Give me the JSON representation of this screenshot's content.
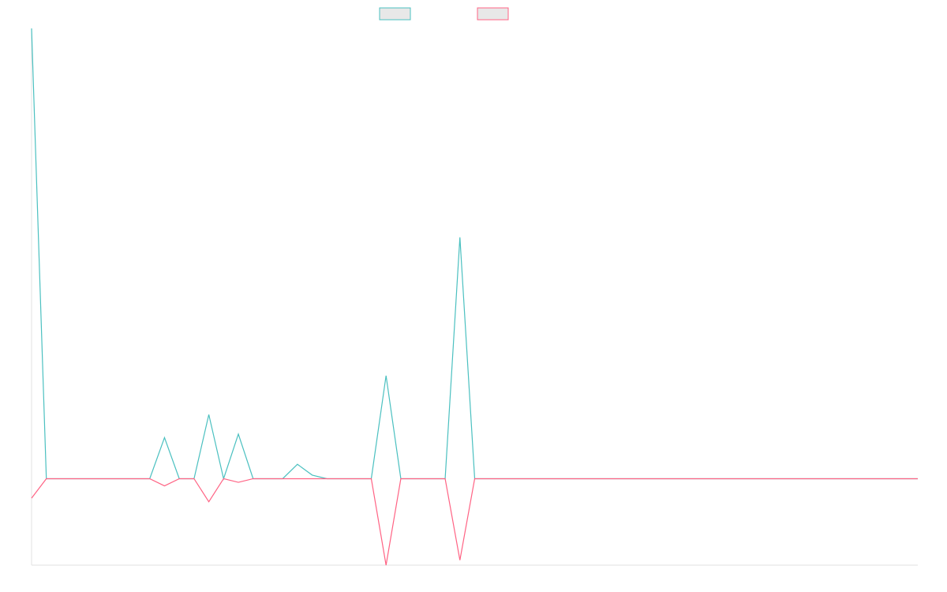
{
  "chart_data": {
    "type": "line",
    "title": "",
    "xlabel": "",
    "ylabel": "",
    "grid": false,
    "legend_position": "top-center",
    "x": [
      0,
      1,
      2,
      3,
      4,
      5,
      6,
      7,
      8,
      9,
      10,
      11,
      12,
      13,
      14,
      15,
      16,
      17,
      18,
      19,
      20,
      21,
      22,
      23,
      24,
      25,
      26,
      27,
      28,
      29,
      30,
      31,
      32,
      33,
      34,
      35,
      36,
      37,
      38,
      39,
      40,
      41,
      42,
      43,
      44,
      45,
      46,
      47,
      48,
      49,
      50,
      51,
      52,
      53,
      54,
      55,
      56,
      57,
      58,
      59,
      60
    ],
    "ylim": [
      -120,
      625
    ],
    "series": [
      {
        "color": "#4bc0c0",
        "fill": "#e8e8e8",
        "values": [
          625,
          0,
          0,
          0,
          0,
          0,
          0,
          0,
          0,
          57,
          0,
          0,
          89,
          0,
          62,
          0,
          0,
          0,
          20,
          5,
          0,
          0,
          0,
          0,
          143,
          0,
          0,
          0,
          0,
          335,
          0,
          0,
          0,
          0,
          0,
          0,
          0,
          0,
          0,
          0,
          0,
          0,
          0,
          0,
          0,
          0,
          0,
          0,
          0,
          0,
          0,
          0,
          0,
          0,
          0,
          0,
          0,
          0,
          0,
          0,
          0
        ]
      },
      {
        "color": "#ff6384",
        "fill": "#e8e8e8",
        "values": [
          -27,
          0,
          0,
          0,
          0,
          0,
          0,
          0,
          0,
          -10,
          0,
          0,
          -32,
          0,
          -5,
          0,
          0,
          0,
          0,
          0,
          0,
          0,
          0,
          0,
          -120,
          0,
          0,
          0,
          0,
          -113,
          0,
          0,
          0,
          0,
          0,
          0,
          0,
          0,
          0,
          0,
          0,
          0,
          0,
          0,
          0,
          0,
          0,
          0,
          0,
          0,
          0,
          0,
          0,
          0,
          0,
          0,
          0,
          0,
          0,
          0,
          0
        ]
      }
    ]
  }
}
